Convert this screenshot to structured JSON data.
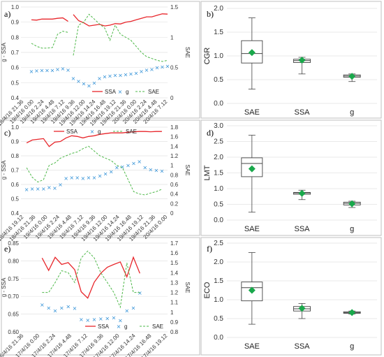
{
  "colors": {
    "ssa": "#e8262b",
    "g": "#2e8fd6",
    "sae": "#4db848",
    "mean": "#19a84b",
    "box": "#444444"
  },
  "chart_data": [
    {
      "panel": "a)",
      "type": "line",
      "ylabel_left": "g - SSA",
      "ylabel_right": "SAE",
      "ylim_left": [
        0.4,
        1.0
      ],
      "yticks_left": [
        "0.4",
        "0.5",
        "0.6",
        "0.7",
        "0.8",
        "0.9",
        "1.0"
      ],
      "ylim_right": [
        0,
        1.5
      ],
      "yticks_right": [
        "0",
        "0.5",
        "1",
        "1.5"
      ],
      "xtick_labels": [
        "18/4/16 21.36",
        "19/4/16 0.00",
        "19/4/16 2.24",
        "19/4/16 4.48",
        "19/4/16 7.12",
        "19/4/16 9.36",
        "19/4/16 12.00",
        "19/4/16 14.24",
        "19/4/16 16.48",
        "19/4/16 19.12",
        "19/4/16 21.36",
        "20/4/16 0.00",
        "20/4/16 2.24",
        "20/4/16 4.48",
        "20/4/16 7.12"
      ],
      "legend": [
        "SSA",
        "g",
        "SAE"
      ],
      "series": [
        {
          "name": "SSA",
          "axis": "left",
          "style": "solid",
          "x": [
            1.0,
            1.5,
            2.0,
            2.5,
            3.0,
            3.5,
            4.0,
            4.5,
            null,
            5.0,
            5.5,
            6.0,
            6.5,
            7.0,
            7.5,
            8.0,
            8.5,
            9.0,
            9.5,
            10.0,
            10.5,
            11.0,
            11.5,
            12.0,
            12.5,
            13.0,
            13.5,
            14.0
          ],
          "y": [
            0.915,
            0.913,
            0.92,
            0.92,
            0.92,
            0.925,
            0.928,
            0.905,
            null,
            0.95,
            0.91,
            0.895,
            0.875,
            0.88,
            0.885,
            0.875,
            0.88,
            0.89,
            0.888,
            0.9,
            0.905,
            0.915,
            0.925,
            0.935,
            0.935,
            0.945,
            0.955,
            0.953
          ]
        },
        {
          "name": "g",
          "axis": "left",
          "style": "marker",
          "x": [
            1.0,
            1.5,
            2.0,
            2.5,
            3.0,
            3.5,
            4.0,
            4.5,
            5.0,
            5.5,
            6.0,
            6.5,
            7.0,
            7.5,
            8.0,
            8.5,
            9.0,
            9.5,
            10.0,
            10.5,
            11.0,
            11.5,
            12.0,
            12.5,
            13.0,
            13.5,
            14.0
          ],
          "y": [
            0.575,
            0.58,
            0.582,
            0.583,
            0.583,
            0.59,
            0.595,
            0.585,
            0.53,
            0.51,
            0.495,
            0.48,
            0.5,
            0.53,
            0.54,
            0.545,
            0.55,
            0.55,
            0.555,
            0.56,
            0.565,
            0.575,
            0.585,
            0.59,
            0.6,
            0.605,
            0.61
          ]
        },
        {
          "name": "SAE",
          "axis": "right",
          "style": "dashed",
          "x": [
            1.0,
            1.5,
            2.0,
            2.5,
            3.0,
            3.5,
            4.0,
            4.5,
            null,
            5.0,
            5.5,
            6.0,
            6.5,
            7.0,
            7.5,
            8.0,
            8.5,
            9.0,
            9.5,
            10.0,
            10.5,
            11.0,
            11.5,
            12.0,
            12.5,
            13.0,
            13.5,
            14.0
          ],
          "y": [
            0.9,
            0.85,
            0.82,
            0.82,
            0.83,
            1.05,
            1.1,
            1.08,
            null,
            0.7,
            1.2,
            1.25,
            1.38,
            1.3,
            1.22,
            1.15,
            0.95,
            1.2,
            1.05,
            1.0,
            0.95,
            0.85,
            0.75,
            0.68,
            0.65,
            0.62,
            0.6,
            0.62
          ]
        }
      ]
    },
    {
      "panel": "c)",
      "type": "line",
      "ylabel_left": "g - SSA",
      "ylabel_right": "SAE",
      "ylim_left": [
        0.4,
        1.0
      ],
      "yticks_left": [
        "0.4",
        "0.5",
        "0.6",
        "0.7",
        "0.8",
        "0.9",
        "1.0"
      ],
      "ylim_right": [
        0,
        1.8
      ],
      "yticks_right": [
        "0",
        "0.2",
        "0.4",
        "0.6",
        "0.8",
        "1",
        "1.2",
        "1.4",
        "1.6",
        "1.8"
      ],
      "xtick_labels": [
        "18/4/16 19.12",
        "18/4/16 21.36",
        "19/4/16 0.00",
        "19/4/16 2.24",
        "19/4/16 4.48",
        "19/4/16 7.12",
        "19/4/16 9.36",
        "19/4/16 12.00",
        "19/4/16 14.24",
        "19/4/16 16.48",
        "19/4/16 19.12",
        "19/4/16 21.36",
        "20/4/16 0.00"
      ],
      "legend": [
        "SSA",
        "g",
        "SAE"
      ],
      "series": [
        {
          "name": "SSA",
          "axis": "left",
          "style": "solid",
          "x": [
            0.0,
            0.5,
            1.0,
            1.5,
            2.0,
            2.5,
            3.0,
            3.5,
            4.0,
            4.5,
            5.0,
            5.5,
            6.0,
            6.5,
            7.0,
            7.5,
            8.0,
            8.5,
            9.0,
            9.5,
            10.0,
            10.5,
            11.0,
            11.5,
            12.0
          ],
          "y": [
            0.89,
            0.91,
            0.915,
            0.92,
            0.865,
            0.895,
            0.9,
            0.925,
            0.94,
            0.935,
            0.925,
            0.935,
            0.94,
            0.95,
            0.955,
            0.96,
            0.96,
            0.96,
            0.965,
            0.968,
            0.97,
            0.97,
            0.968,
            0.97,
            0.97
          ]
        },
        {
          "name": "g",
          "axis": "left",
          "style": "marker",
          "x": [
            0.0,
            0.5,
            1.0,
            1.5,
            2.0,
            2.5,
            3.0,
            3.5,
            4.0,
            4.5,
            5.0,
            5.5,
            6.0,
            6.5,
            7.0,
            7.5,
            8.0,
            8.5,
            9.0,
            9.5,
            10.0,
            10.5,
            11.0,
            11.5,
            12.0
          ],
          "y": [
            0.565,
            0.57,
            0.57,
            0.57,
            0.58,
            0.575,
            0.6,
            0.645,
            0.65,
            0.65,
            0.645,
            0.65,
            0.65,
            0.66,
            0.675,
            0.69,
            0.72,
            0.725,
            0.735,
            0.75,
            0.76,
            0.72,
            0.705,
            0.7,
            0.695
          ]
        },
        {
          "name": "SAE",
          "axis": "right",
          "style": "dashed",
          "x": [
            0.0,
            0.5,
            1.0,
            1.5,
            2.0,
            2.5,
            3.0,
            3.5,
            4.0,
            4.5,
            5.0,
            5.5,
            6.0,
            6.5,
            7.0,
            7.5,
            8.0,
            8.5,
            9.0,
            9.5,
            10.0,
            10.5,
            11.0,
            11.5,
            12.0
          ],
          "y": [
            0.95,
            0.75,
            0.65,
            0.7,
            1.0,
            1.05,
            1.15,
            1.2,
            1.25,
            1.28,
            1.35,
            1.4,
            1.3,
            1.2,
            1.15,
            1.1,
            1.0,
            0.95,
            0.7,
            0.45,
            0.4,
            0.38,
            0.42,
            0.45,
            0.5
          ]
        }
      ]
    },
    {
      "panel": "e)",
      "type": "line",
      "ylabel_left": "g - SSA",
      "ylabel_right": "SAE",
      "ylim_left": [
        0.6,
        0.85
      ],
      "yticks_left": [
        "0.60",
        "0.65",
        "0.70",
        "0.75",
        "0.80",
        "0.85"
      ],
      "ylim_right": [
        0.8,
        1.7
      ],
      "yticks_right": [
        "0.8",
        "0.9",
        "1",
        "1.1",
        "1.2",
        "1.3",
        "1.4",
        "1.5",
        "1.6",
        "1.7"
      ],
      "xtick_labels": [
        "16/4/16 21.36",
        "17/4/16 0.00",
        "17/4/16 2.24",
        "17/4/16 4.48",
        "17/4/16 7.12",
        "17/4/16 9.36",
        "17/4/16 12.00",
        "17/4/16 14.24",
        "17/4/16 16.48",
        "17/4/16 19.12"
      ],
      "legend": [
        "SSA",
        "g",
        "SAE"
      ],
      "series": [
        {
          "name": "SSA",
          "axis": "left",
          "style": "solid",
          "x": [
            1.3,
            1.7,
            2.1,
            2.5,
            2.9,
            3.3,
            3.7,
            4.1,
            4.5,
            4.9,
            5.3,
            5.7,
            6.1,
            6.5,
            6.9,
            7.3,
            7.7
          ],
          "y": [
            0.808,
            0.773,
            0.81,
            0.79,
            0.795,
            0.775,
            0.713,
            0.695,
            0.74,
            0.765,
            0.782,
            0.79,
            0.797,
            0.755,
            0.81,
            0.765,
            null
          ]
        },
        {
          "name": "g",
          "axis": "left",
          "style": "marker",
          "x": [
            1.3,
            1.7,
            2.1,
            2.5,
            2.9,
            3.3,
            3.7,
            4.1,
            4.5,
            4.9,
            5.3,
            5.7,
            6.1,
            6.5,
            6.9,
            7.3
          ],
          "y": [
            0.677,
            0.668,
            0.66,
            0.668,
            0.672,
            0.667,
            0.635,
            0.633,
            0.635,
            0.637,
            0.638,
            0.64,
            0.632,
            0.66,
            0.668,
            0.71
          ]
        },
        {
          "name": "SAE",
          "axis": "right",
          "style": "dashed",
          "x": [
            1.3,
            1.7,
            2.1,
            2.5,
            2.9,
            3.3,
            3.7,
            4.1,
            4.5,
            4.9,
            5.3,
            5.7,
            6.1,
            6.5,
            6.9,
            7.3
          ],
          "y": [
            1.2,
            1.2,
            1.3,
            1.42,
            1.4,
            1.3,
            1.55,
            1.62,
            1.55,
            1.4,
            1.3,
            1.2,
            1.05,
            1.5,
            1.2,
            1.2
          ]
        }
      ]
    },
    {
      "panel": "b)",
      "type": "box",
      "ylabel": "CGR",
      "ylim": [
        0.0,
        2.0
      ],
      "yticks": [
        "0.0",
        "0.5",
        "1.0",
        "1.5",
        "2.0"
      ],
      "categories": [
        "SAE",
        "SSA",
        "g"
      ],
      "boxes": [
        {
          "min": 0.3,
          "q1": 0.85,
          "median": 1.05,
          "q3": 1.32,
          "max": 1.8,
          "mean": 1.07
        },
        {
          "min": 0.62,
          "q1": 0.86,
          "median": 0.9,
          "q3": 0.93,
          "max": 0.97,
          "mean": 0.91
        },
        {
          "min": 0.46,
          "q1": 0.55,
          "median": 0.575,
          "q3": 0.6,
          "max": 0.62,
          "mean": 0.57
        }
      ]
    },
    {
      "panel": "d)",
      "type": "box",
      "ylabel": "LMT",
      "ylim": [
        0.0,
        3.0
      ],
      "yticks": [
        "0.0",
        "0.5",
        "1.0",
        "1.5",
        "2.0",
        "2.5",
        "3.0"
      ],
      "categories": [
        "SAE",
        "SSA",
        "g"
      ],
      "boxes": [
        {
          "min": 0.25,
          "q1": 1.38,
          "median": 1.8,
          "q3": 1.98,
          "max": 2.7,
          "mean": 1.63
        },
        {
          "min": 0.65,
          "q1": 0.82,
          "median": 0.86,
          "q3": 0.88,
          "max": 0.95,
          "mean": 0.85
        },
        {
          "min": 0.4,
          "q1": 0.48,
          "median": 0.53,
          "q3": 0.57,
          "max": 0.6,
          "mean": 0.52
        }
      ]
    },
    {
      "panel": "f)",
      "type": "box",
      "ylabel": "ECO",
      "ylim": [
        0.0,
        2.5
      ],
      "yticks": [
        "0.0",
        "0.5",
        "1.0",
        "1.5",
        "2.0",
        "2.5"
      ],
      "categories": [
        "SAE",
        "SSA",
        "g"
      ],
      "boxes": [
        {
          "min": 0.35,
          "q1": 0.97,
          "median": 1.32,
          "q3": 1.47,
          "max": 2.25,
          "mean": 1.25
        },
        {
          "min": 0.5,
          "q1": 0.7,
          "median": 0.76,
          "q3": 0.82,
          "max": 0.9,
          "mean": 0.77
        },
        {
          "min": 0.62,
          "q1": 0.64,
          "median": 0.66,
          "q3": 0.68,
          "max": 0.7,
          "mean": 0.66
        }
      ]
    }
  ]
}
